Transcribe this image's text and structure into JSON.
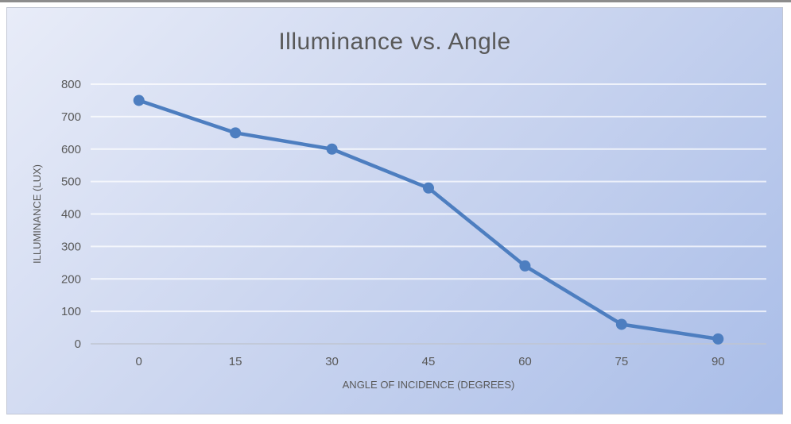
{
  "chart": {
    "title": "Illuminance vs. Angle"
  },
  "chart_data": {
    "type": "line",
    "title": "Illuminance vs. Angle",
    "xlabel": "ANGLE OF INCIDENCE (DEGREES)",
    "ylabel": "ILLUMINANCE (LUX)",
    "categories": [
      "0",
      "15",
      "30",
      "45",
      "60",
      "75",
      "90"
    ],
    "series": [
      {
        "name": "Illuminance",
        "values": [
          750,
          650,
          600,
          480,
          240,
          60,
          15
        ]
      }
    ],
    "ylim": [
      0,
      800
    ],
    "ytick_step": 100,
    "yticks": [
      "0",
      "100",
      "200",
      "300",
      "400",
      "500",
      "600",
      "700",
      "800"
    ],
    "grid": true,
    "legend": "none",
    "marker": "circle"
  },
  "colors": {
    "line": "#4d7ec0",
    "marker": "#4d7ec0",
    "text": "#595959",
    "gridline": "rgba(255,255,255,0.72)",
    "axis_line": "#bfc5d1",
    "background_top_left": "#e8ecf8",
    "background_bottom_right": "#a9bde8",
    "frame_border": "#c2c7d4"
  }
}
